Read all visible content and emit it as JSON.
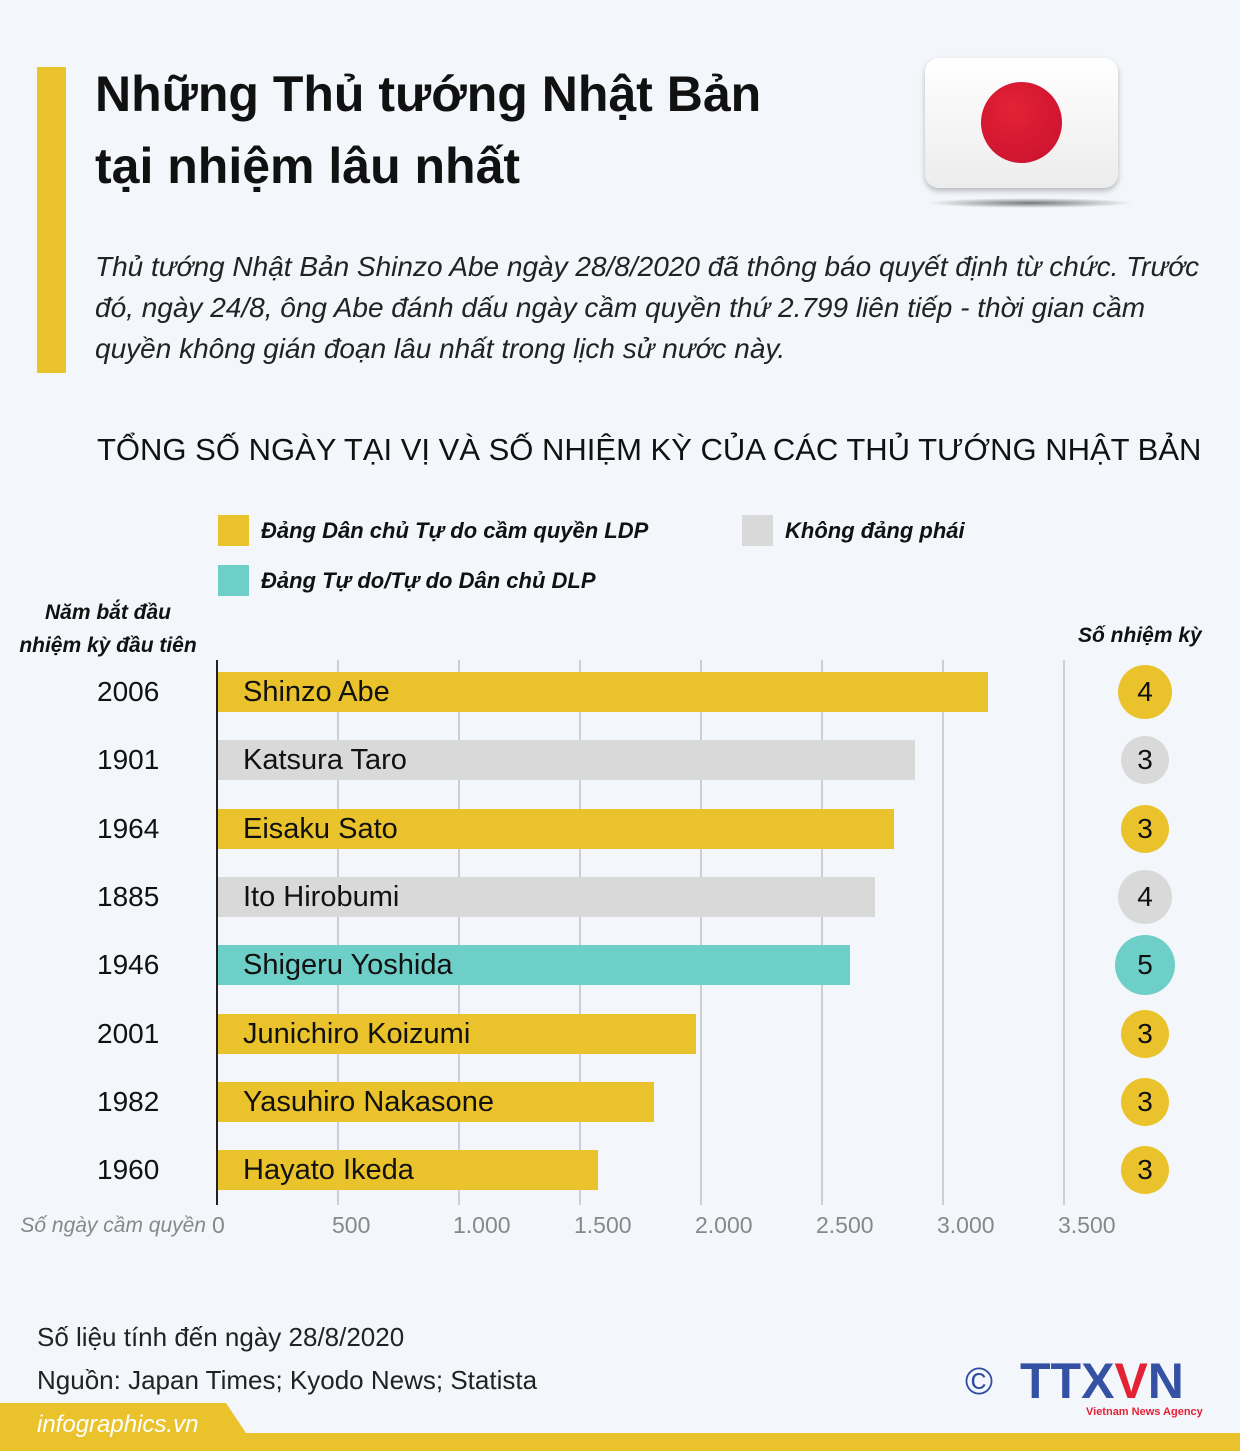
{
  "header": {
    "title_line1": "Những Thủ tướng Nhật Bản",
    "title_line2": "tại nhiệm lâu nhất",
    "description": "Thủ tướng Nhật Bản Shinzo Abe ngày 28/8/2020 đã thông báo quyết định từ chức. Trước đó, ngày 24/8, ông Abe đánh dấu ngày cầm quyền thứ 2.799 liên tiếp - thời gian cầm quyền không gián đoạn lâu nhất trong lịch sử nước này."
  },
  "colors": {
    "accent": "#EAC32C",
    "LDP": "#EAC32C",
    "none": "#D9D9D9",
    "DLP": "#6ECFC8"
  },
  "chart_data": {
    "type": "bar",
    "orientation": "horizontal",
    "title": "TỔNG SỐ NGÀY TẠI VỊ VÀ SỐ NHIỆM KỲ CỦA CÁC THỦ TƯỚNG NHẬT BẢN",
    "xlabel": "Số ngày cầm quyền",
    "year_column_label": "Năm bắt đầu nhiệm kỳ đầu tiên",
    "terms_column_label": "Số nhiệm kỳ",
    "xlim": [
      0,
      3500
    ],
    "ticks": [
      0,
      500,
      1000,
      1500,
      2000,
      2500,
      3000,
      3500
    ],
    "tick_labels": [
      "0",
      "500",
      "1.000",
      "1.500",
      "2.000",
      "2.500",
      "3.000",
      "3.500"
    ],
    "grid": true,
    "legend": [
      {
        "key": "LDP",
        "label": "Đảng Dân chủ Tự do cầm quyền LDP"
      },
      {
        "key": "none",
        "label": "Không đảng phái"
      },
      {
        "key": "DLP",
        "label": "Đảng Tự do/Tự do Dân chủ DLP"
      }
    ],
    "rows": [
      {
        "name": "Shinzo Abe",
        "year": "2006",
        "days": 3188,
        "party": "LDP",
        "terms": "4"
      },
      {
        "name": "Katsura Taro",
        "year": "1901",
        "days": 2886,
        "party": "none",
        "terms": "3"
      },
      {
        "name": "Eisaku Sato",
        "year": "1964",
        "days": 2798,
        "party": "LDP",
        "terms": "3"
      },
      {
        "name": "Ito Hirobumi",
        "year": "1885",
        "days": 2720,
        "party": "none",
        "terms": "4"
      },
      {
        "name": "Shigeru Yoshida",
        "year": "1946",
        "days": 2616,
        "party": "DLP",
        "terms": "5"
      },
      {
        "name": "Junichiro Koizumi",
        "year": "2001",
        "days": 1980,
        "party": "LDP",
        "terms": "3"
      },
      {
        "name": "Yasuhiro Nakasone",
        "year": "1982",
        "days": 1806,
        "party": "LDP",
        "terms": "3"
      },
      {
        "name": "Hayato Ikeda",
        "year": "1960",
        "days": 1575,
        "party": "LDP",
        "terms": "3"
      }
    ]
  },
  "footer": {
    "note": "Số liệu tính đến ngày 28/8/2020",
    "source": "Nguồn: Japan Times; Kyodo News; Statista",
    "site": "infographics.vn",
    "copyright": "©",
    "logo": "TTXVN",
    "logo_sub": "Vietnam News Agency"
  }
}
